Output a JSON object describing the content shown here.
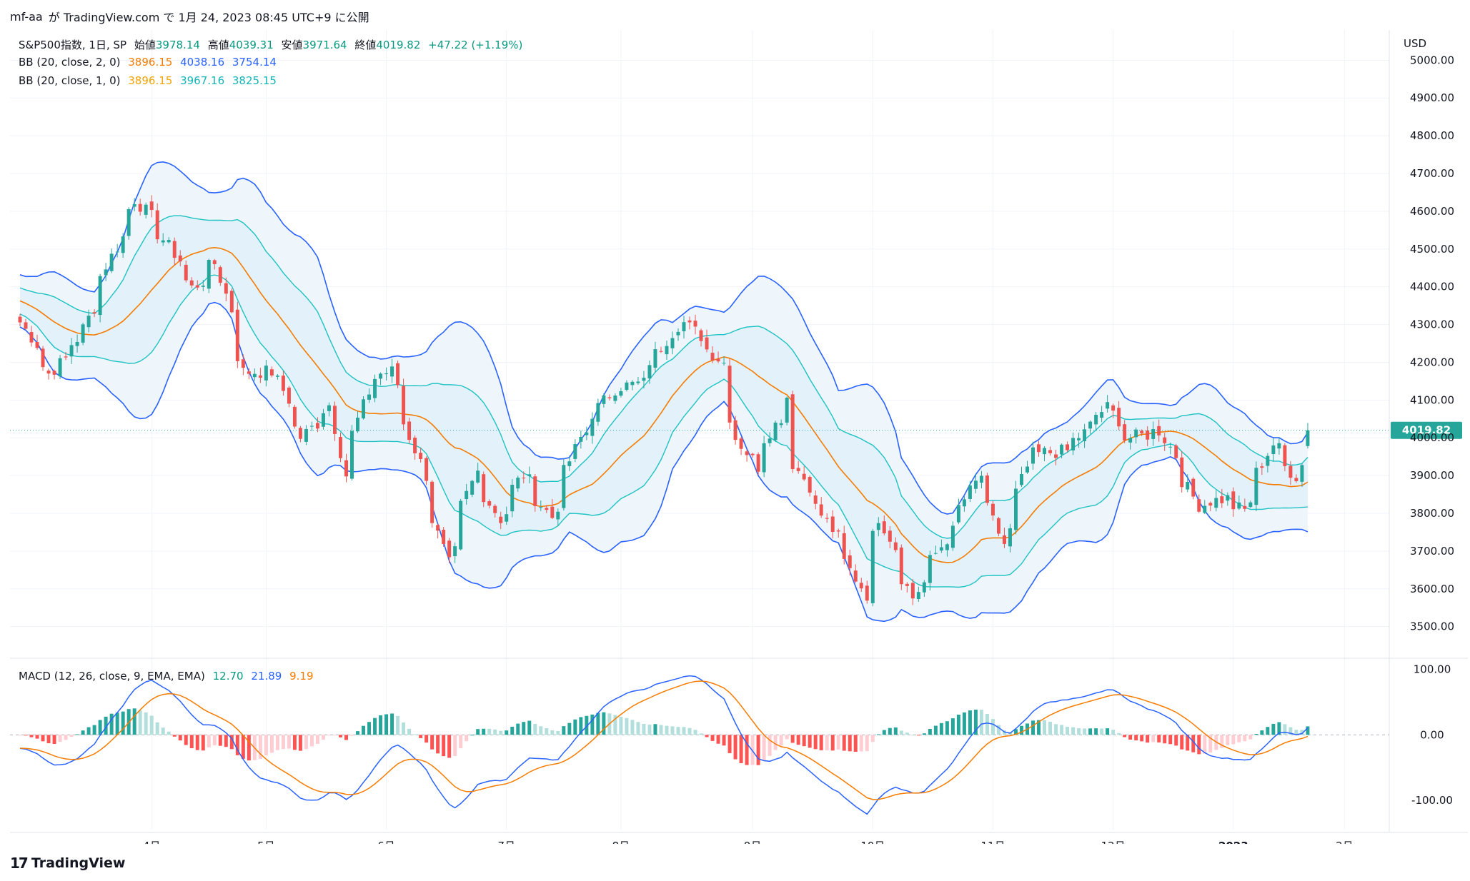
{
  "header": {
    "user": "mf-aa",
    "text": "が TradingView.com で 1月 24, 2023 08:45 UTC+9 に公開"
  },
  "legend_main": {
    "symbol": "S&P500指数, 1日, SP",
    "open_label": "始値",
    "open": "3978.14",
    "high_label": "高値",
    "high": "4039.31",
    "low_label": "安値",
    "low": "3971.64",
    "close_label": "終値",
    "close": "4019.82",
    "change": "+47.22 (+1.19%)"
  },
  "legend_bb2": {
    "label": "BB (20, close, 2, 0)",
    "basis": "3896.15",
    "upper": "4038.16",
    "lower": "3754.14"
  },
  "legend_bb1": {
    "label": "BB (20, close, 1, 0)",
    "basis": "3896.15",
    "upper": "3967.16",
    "lower": "3825.15"
  },
  "legend_macd": {
    "label": "MACD (12, 26, close, 9, EMA, EMA)",
    "hist": "12.70",
    "macd": "21.89",
    "signal": "9.19"
  },
  "currency": "USD",
  "last_price_tag": "4019.82",
  "colors": {
    "up": "#26a69a",
    "down": "#ef5350",
    "bb2_line": "#2962ff",
    "bb2_fill": "#eef6fc",
    "bb1_line": "#1ec2c2",
    "basis": "#f57c00",
    "macd_line": "#2962ff",
    "signal_line": "#f57c00",
    "hist_up_strong": "#26a69a",
    "hist_up_weak": "#b2dfdb",
    "hist_down_strong": "#ff5252",
    "hist_down_weak": "#ffcdd2"
  },
  "footer": {
    "brand": "TradingView",
    "logo_icon": "tradingview-logo-icon"
  },
  "chart_data": [
    {
      "type": "candlestick",
      "title": "S&P500指数, 1日, SP",
      "y_ticks": [
        "5000.00",
        "4900.00",
        "4800.00",
        "4700.00",
        "4600.00",
        "4500.00",
        "4400.00",
        "4300.00",
        "4200.00",
        "4100.00",
        "4000.00",
        "3900.00",
        "3800.00",
        "3700.00",
        "3600.00",
        "3500.00"
      ],
      "ylim": [
        3420,
        5080
      ],
      "x_ticks": [
        "4月",
        "5月",
        "6月",
        "7月",
        "8月",
        "9月",
        "10月",
        "11月",
        "12月",
        "2023",
        "2月"
      ],
      "series": [
        {
          "name": "price",
          "key_points": [
            [
              "2022-03-01",
              4306
            ],
            [
              "2022-03-08",
              4170
            ],
            [
              "2022-03-15",
              4262
            ],
            [
              "2022-03-22",
              4456
            ],
            [
              "2022-03-29",
              4631
            ],
            [
              "2022-04-05",
              4525
            ],
            [
              "2022-04-12",
              4397
            ],
            [
              "2022-04-19",
              4462
            ],
            [
              "2022-04-26",
              4175
            ],
            [
              "2022-05-03",
              4175
            ],
            [
              "2022-05-10",
              4001
            ],
            [
              "2022-05-17",
              4088
            ],
            [
              "2022-05-20",
              3901
            ],
            [
              "2022-05-27",
              4158
            ],
            [
              "2022-06-02",
              4176
            ],
            [
              "2022-06-10",
              3900
            ],
            [
              "2022-06-16",
              3666
            ],
            [
              "2022-06-24",
              3911
            ],
            [
              "2022-06-30",
              3785
            ],
            [
              "2022-07-07",
              3902
            ],
            [
              "2022-07-14",
              3790
            ],
            [
              "2022-07-21",
              3999
            ],
            [
              "2022-07-29",
              4130
            ],
            [
              "2022-08-05",
              4145
            ],
            [
              "2022-08-12",
              4280
            ],
            [
              "2022-08-16",
              4305
            ],
            [
              "2022-08-25",
              4199
            ],
            [
              "2022-08-26",
              4057
            ],
            [
              "2022-09-02",
              3924
            ],
            [
              "2022-09-12",
              4110
            ],
            [
              "2022-09-13",
              3932
            ],
            [
              "2022-09-22",
              3757
            ],
            [
              "2022-09-30",
              3585
            ],
            [
              "2022-10-04",
              3790
            ],
            [
              "2022-10-12",
              3577
            ],
            [
              "2022-10-21",
              3752
            ],
            [
              "2022-10-28",
              3901
            ],
            [
              "2022-11-03",
              3719
            ],
            [
              "2022-11-10",
              3956
            ],
            [
              "2022-11-18",
              3965
            ],
            [
              "2022-11-30",
              4080
            ],
            [
              "2022-12-05",
              3998
            ],
            [
              "2022-12-13",
              4019
            ],
            [
              "2022-12-22",
              3822
            ],
            [
              "2022-12-30",
              3839
            ],
            [
              "2023-01-05",
              3808
            ],
            [
              "2023-01-12",
              3983
            ],
            [
              "2023-01-19",
              3898
            ],
            [
              "2023-01-23",
              4019.82
            ]
          ]
        },
        {
          "name": "BB (20, close, 2, 0)",
          "last": {
            "basis": 3896.15,
            "upper": 4038.16,
            "lower": 3754.14
          }
        },
        {
          "name": "BB (20, close, 1, 0)",
          "last": {
            "basis": 3896.15,
            "upper": 3967.16,
            "lower": 3825.15
          }
        }
      ]
    },
    {
      "type": "line",
      "title": "MACD (12, 26, close, 9, EMA, EMA)",
      "y_ticks": [
        "100.00",
        "0.00",
        "-100.00"
      ],
      "ylim": [
        -145,
        115
      ],
      "series": [
        {
          "name": "MACD",
          "last": 21.89
        },
        {
          "name": "Signal",
          "last": 9.19
        },
        {
          "name": "Histogram",
          "last": 12.7
        }
      ]
    }
  ]
}
